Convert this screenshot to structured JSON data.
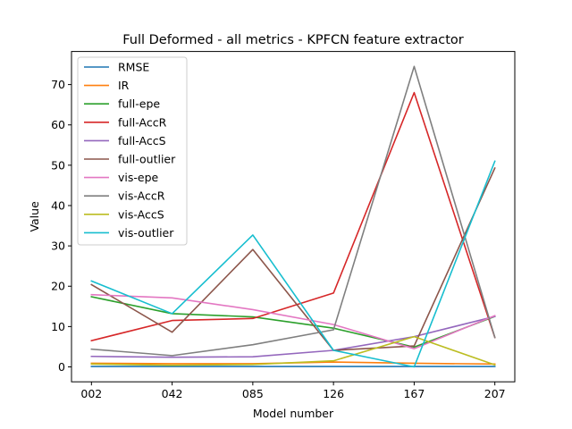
{
  "chart_data": {
    "type": "line",
    "title": "Full Deformed - all metrics - KPFCN feature extractor",
    "xlabel": "Model number",
    "ylabel": "Value",
    "categories": [
      "002",
      "042",
      "085",
      "126",
      "167",
      "207"
    ],
    "ylim": [
      -3.7,
      78.2
    ],
    "yticks": [
      0,
      10,
      20,
      30,
      40,
      50,
      60,
      70
    ],
    "grid": false,
    "legend_position": "top-left",
    "series": [
      {
        "name": "RMSE",
        "color": "#1f77b4",
        "values": [
          0.1,
          0.1,
          0.1,
          0.1,
          0.1,
          0.1
        ]
      },
      {
        "name": "IR",
        "color": "#ff7f0e",
        "values": [
          0.9,
          0.8,
          0.8,
          1.2,
          0.9,
          0.7
        ]
      },
      {
        "name": "full-epe",
        "color": "#2ca02c",
        "values": [
          17.4,
          13.2,
          12.4,
          9.6,
          4.9,
          12.5
        ]
      },
      {
        "name": "full-AccR",
        "color": "#d62728",
        "values": [
          6.5,
          11.5,
          12.0,
          18.3,
          68.0,
          7.3
        ]
      },
      {
        "name": "full-AccS",
        "color": "#9467bd",
        "values": [
          2.6,
          2.4,
          2.5,
          4.1,
          7.5,
          12.5
        ]
      },
      {
        "name": "full-outlier",
        "color": "#8c564b",
        "values": [
          20.4,
          8.6,
          29.1,
          4.1,
          5.2,
          49.3
        ]
      },
      {
        "name": "vis-epe",
        "color": "#e377c2",
        "values": [
          17.9,
          17.1,
          14.2,
          10.5,
          4.5,
          12.7
        ]
      },
      {
        "name": "vis-AccR",
        "color": "#7f7f7f",
        "values": [
          4.4,
          2.8,
          5.5,
          9.2,
          74.5,
          7.3
        ]
      },
      {
        "name": "vis-AccS",
        "color": "#bcbd22",
        "values": [
          0.7,
          0.4,
          0.6,
          1.5,
          7.5,
          0.5
        ]
      },
      {
        "name": "vis-outlier",
        "color": "#17becf",
        "values": [
          21.3,
          13.2,
          32.7,
          4.1,
          0.0,
          51.0
        ]
      }
    ]
  }
}
